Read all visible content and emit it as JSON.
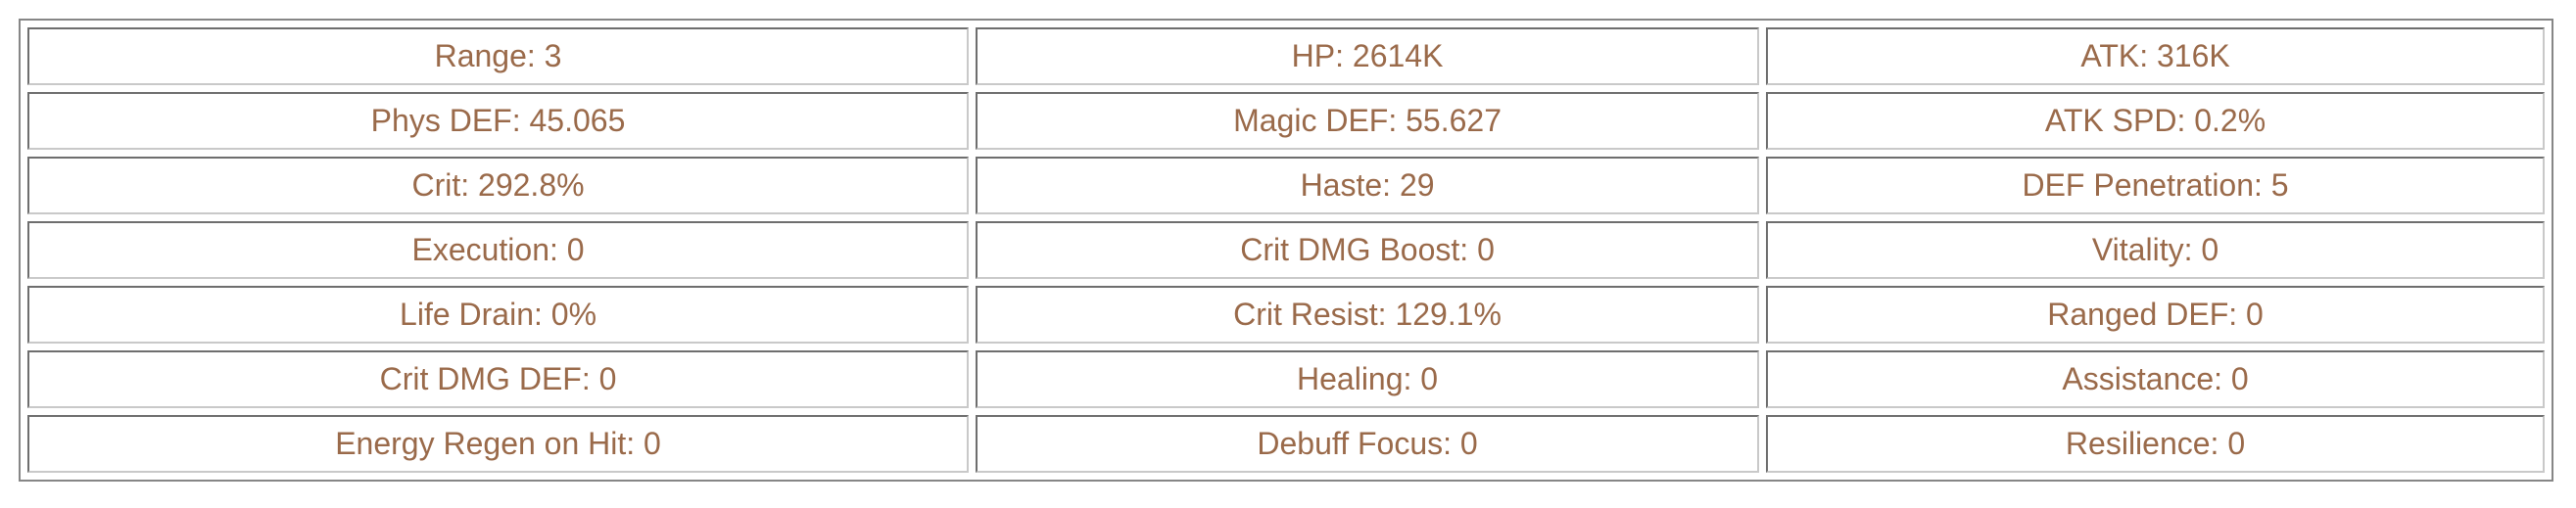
{
  "colors": {
    "text": "#9a6a4a",
    "frame_border": "#868686",
    "cell_border_dark": "#6e6e6e",
    "cell_border_light": "#c9c9c9",
    "background": "#ffffff"
  },
  "stats_table": {
    "rows": [
      [
        "Range: 3",
        "HP: 2614K",
        "ATK: 316K"
      ],
      [
        "Phys DEF: 45.065",
        "Magic DEF: 55.627",
        "ATK SPD: 0.2%"
      ],
      [
        "Crit: 292.8%",
        "Haste: 29",
        "DEF Penetration: 5"
      ],
      [
        "Execution: 0",
        "Crit DMG Boost: 0",
        "Vitality: 0"
      ],
      [
        "Life Drain: 0%",
        "Crit Resist: 129.1%",
        "Ranged DEF: 0"
      ],
      [
        "Crit DMG DEF: 0",
        "Healing: 0",
        "Assistance: 0"
      ],
      [
        "Energy Regen on Hit: 0",
        "Debuff Focus: 0",
        "Resilience: 0"
      ]
    ]
  }
}
